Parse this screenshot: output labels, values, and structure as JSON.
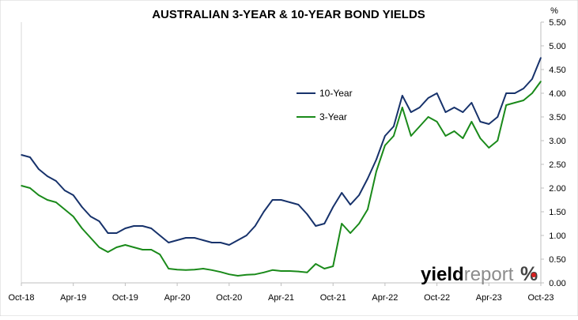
{
  "chart_data": {
    "type": "line",
    "title": "AUSTRALIAN 3-YEAR & 10-YEAR BOND YIELDS",
    "ylabel": "%",
    "xlabel": "",
    "ylim": [
      0,
      5.5
    ],
    "yticks": [
      "0.00",
      "0.50",
      "1.00",
      "1.50",
      "2.00",
      "2.50",
      "3.00",
      "3.50",
      "4.00",
      "4.50",
      "5.00",
      "5.50"
    ],
    "xlim": [
      "2018-10",
      "2023-10"
    ],
    "xticks": [
      "Oct-18",
      "Apr-19",
      "Oct-19",
      "Apr-20",
      "Oct-20",
      "Apr-21",
      "Oct-21",
      "Apr-22",
      "Oct-22",
      "Apr-23",
      "Oct-23"
    ],
    "grid": false,
    "legend_position": "center",
    "series": [
      {
        "name": "10-Year",
        "color": "#17326b",
        "x": [
          "2018-10",
          "2018-11",
          "2018-12",
          "2019-01",
          "2019-02",
          "2019-03",
          "2019-04",
          "2019-05",
          "2019-06",
          "2019-07",
          "2019-08",
          "2019-09",
          "2019-10",
          "2019-11",
          "2019-12",
          "2020-01",
          "2020-02",
          "2020-03",
          "2020-04",
          "2020-05",
          "2020-06",
          "2020-07",
          "2020-08",
          "2020-09",
          "2020-10",
          "2020-11",
          "2020-12",
          "2021-01",
          "2021-02",
          "2021-03",
          "2021-04",
          "2021-05",
          "2021-06",
          "2021-07",
          "2021-08",
          "2021-09",
          "2021-10",
          "2021-11",
          "2021-12",
          "2022-01",
          "2022-02",
          "2022-03",
          "2022-04",
          "2022-05",
          "2022-06",
          "2022-07",
          "2022-08",
          "2022-09",
          "2022-10",
          "2022-11",
          "2022-12",
          "2023-01",
          "2023-02",
          "2023-03",
          "2023-04",
          "2023-05",
          "2023-06",
          "2023-07",
          "2023-08",
          "2023-09",
          "2023-10"
        ],
        "values": [
          2.7,
          2.65,
          2.4,
          2.25,
          2.15,
          1.95,
          1.85,
          1.6,
          1.4,
          1.3,
          1.05,
          1.05,
          1.15,
          1.2,
          1.2,
          1.15,
          1.0,
          0.85,
          0.9,
          0.95,
          0.95,
          0.9,
          0.85,
          0.85,
          0.8,
          0.9,
          1.0,
          1.2,
          1.5,
          1.75,
          1.75,
          1.7,
          1.65,
          1.45,
          1.2,
          1.25,
          1.6,
          1.9,
          1.65,
          1.85,
          2.2,
          2.6,
          3.1,
          3.3,
          3.95,
          3.6,
          3.7,
          3.9,
          4.0,
          3.6,
          3.7,
          3.6,
          3.8,
          3.4,
          3.35,
          3.5,
          4.0,
          4.0,
          4.1,
          4.3,
          4.75
        ]
      },
      {
        "name": "3-Year",
        "color": "#1a8a1a",
        "x": [
          "2018-10",
          "2018-11",
          "2018-12",
          "2019-01",
          "2019-02",
          "2019-03",
          "2019-04",
          "2019-05",
          "2019-06",
          "2019-07",
          "2019-08",
          "2019-09",
          "2019-10",
          "2019-11",
          "2019-12",
          "2020-01",
          "2020-02",
          "2020-03",
          "2020-04",
          "2020-05",
          "2020-06",
          "2020-07",
          "2020-08",
          "2020-09",
          "2020-10",
          "2020-11",
          "2020-12",
          "2021-01",
          "2021-02",
          "2021-03",
          "2021-04",
          "2021-05",
          "2021-06",
          "2021-07",
          "2021-08",
          "2021-09",
          "2021-10",
          "2021-11",
          "2021-12",
          "2022-01",
          "2022-02",
          "2022-03",
          "2022-04",
          "2022-05",
          "2022-06",
          "2022-07",
          "2022-08",
          "2022-09",
          "2022-10",
          "2022-11",
          "2022-12",
          "2023-01",
          "2023-02",
          "2023-03",
          "2023-04",
          "2023-05",
          "2023-06",
          "2023-07",
          "2023-08",
          "2023-09",
          "2023-10"
        ],
        "values": [
          2.05,
          2.0,
          1.85,
          1.75,
          1.7,
          1.55,
          1.4,
          1.15,
          0.95,
          0.75,
          0.65,
          0.75,
          0.8,
          0.75,
          0.7,
          0.7,
          0.6,
          0.3,
          0.28,
          0.27,
          0.28,
          0.3,
          0.27,
          0.23,
          0.18,
          0.15,
          0.17,
          0.18,
          0.22,
          0.27,
          0.25,
          0.25,
          0.24,
          0.22,
          0.4,
          0.3,
          0.35,
          1.25,
          1.05,
          1.25,
          1.55,
          2.35,
          2.9,
          3.1,
          3.7,
          3.1,
          3.3,
          3.5,
          3.4,
          3.1,
          3.2,
          3.05,
          3.4,
          3.05,
          2.85,
          3.0,
          3.75,
          3.8,
          3.85,
          4.0,
          4.25
        ]
      }
    ]
  },
  "watermark": {
    "bold": "yield",
    "light": "report",
    "symbol": "%"
  }
}
